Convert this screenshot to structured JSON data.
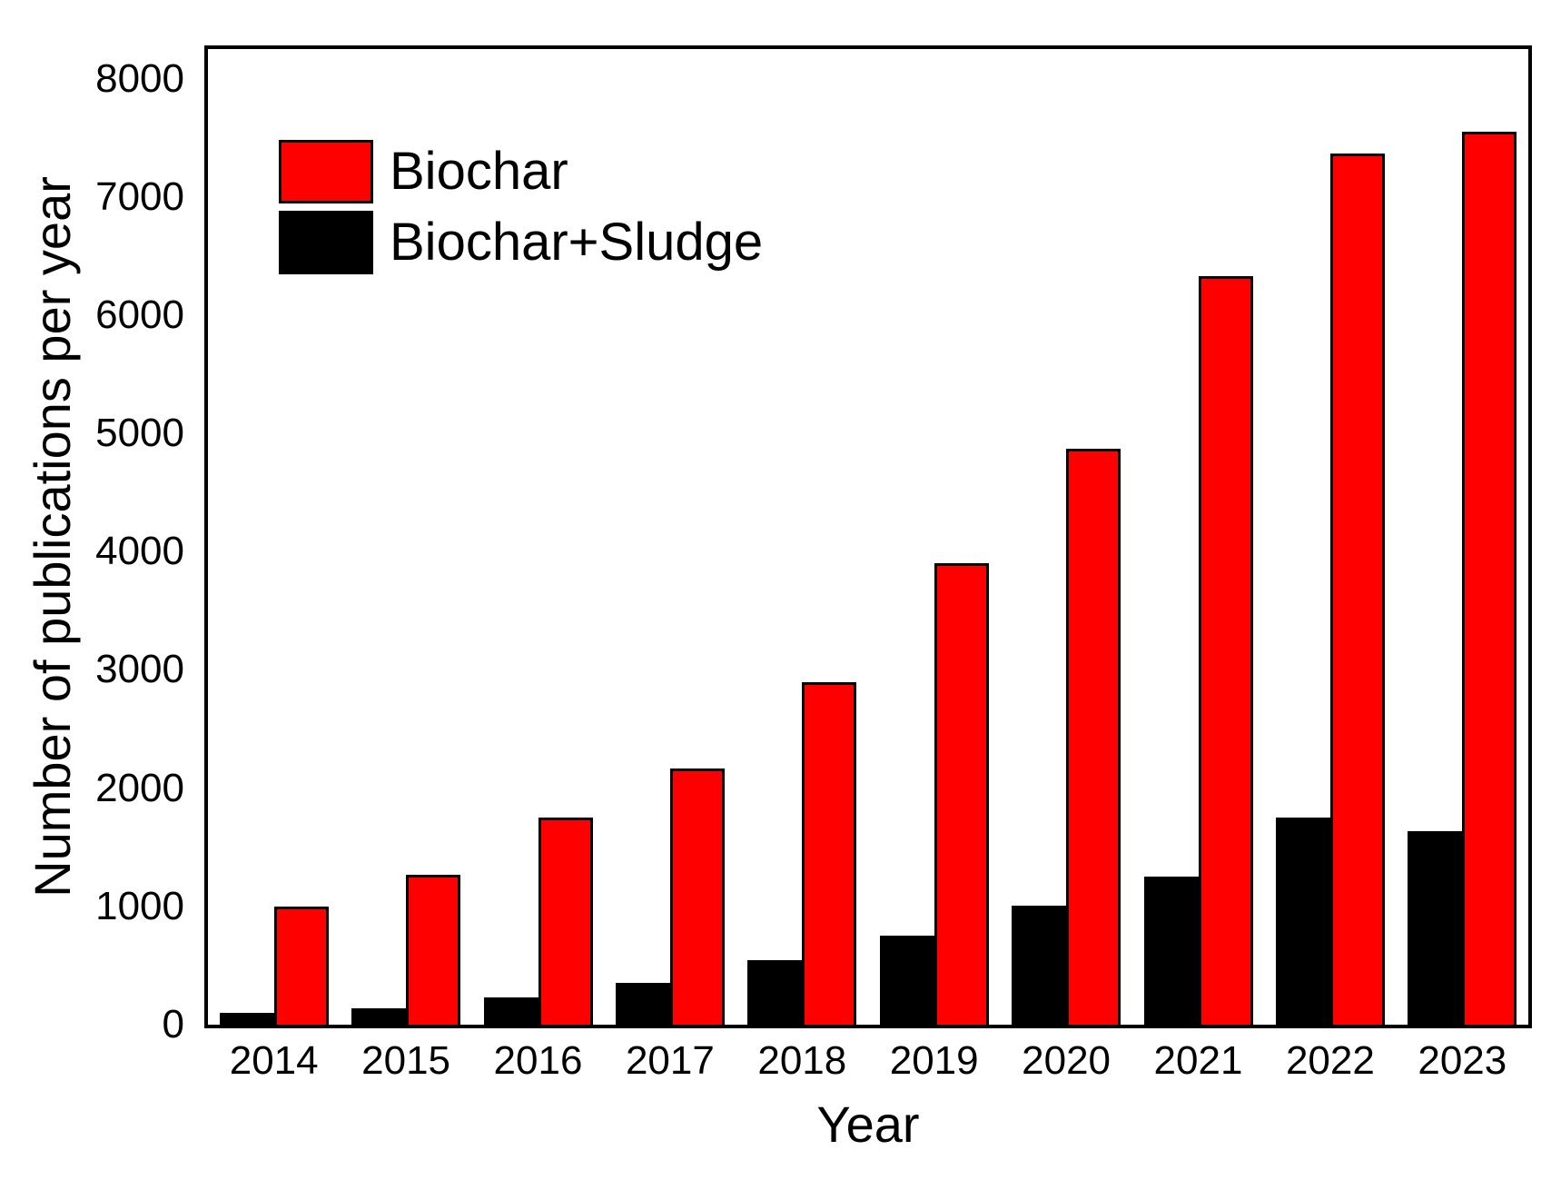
{
  "chart_data": {
    "type": "bar",
    "categories": [
      "2014",
      "2015",
      "2016",
      "2017",
      "2018",
      "2019",
      "2020",
      "2021",
      "2022",
      "2023"
    ],
    "series": [
      {
        "name": "Biochar",
        "color": "#ff0000",
        "values": [
          1000,
          1265,
          1755,
          2165,
          2895,
          3905,
          4870,
          6330,
          7370,
          7550
        ]
      },
      {
        "name": "Biochar+Sludge",
        "color": "#000000",
        "values": [
          100,
          135,
          230,
          355,
          545,
          750,
          1005,
          1255,
          1750,
          1640
        ]
      }
    ],
    "title": "",
    "xlabel": "Year",
    "ylabel": "Number of publications per year",
    "ylim": [
      0,
      8250
    ],
    "yticks": [
      0,
      1000,
      2000,
      3000,
      4000,
      5000,
      6000,
      7000,
      8000
    ],
    "grid": "off",
    "legend_position": "upper-left",
    "group_order_left_to_right": [
      "Biochar+Sludge",
      "Biochar"
    ],
    "bar_outline_color": "#000000"
  }
}
